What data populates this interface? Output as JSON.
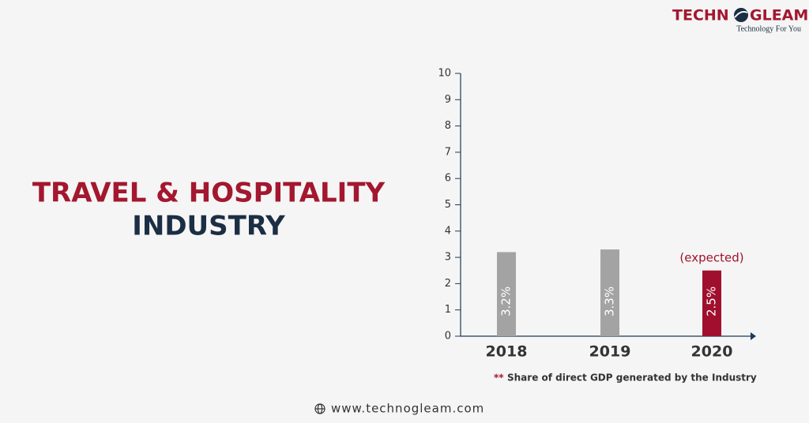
{
  "logo": {
    "left": "TECHN",
    "right": "GLEAM",
    "tagline": "Technology For You"
  },
  "website": "www.technogleam.com",
  "chart_data": {
    "type": "bar",
    "title": [
      "TRAVEL & HOSPITALITY",
      "INDUSTRY"
    ],
    "categories": [
      "2018",
      "2019",
      "2020"
    ],
    "values": [
      3.2,
      3.3,
      2.5
    ],
    "value_labels": [
      "3.2%",
      "3.3%",
      "2.5%"
    ],
    "colors": [
      "#a3a3a3",
      "#a3a3a3",
      "#a0102e"
    ],
    "annotation": "(expected)",
    "footnote": {
      "marker": "**",
      "text": "Share of direct GDP generated by the Industry"
    },
    "ylim": [
      0,
      10
    ],
    "yticks": [
      0,
      1,
      2,
      3,
      4,
      5,
      6,
      7,
      8,
      9,
      10
    ]
  }
}
